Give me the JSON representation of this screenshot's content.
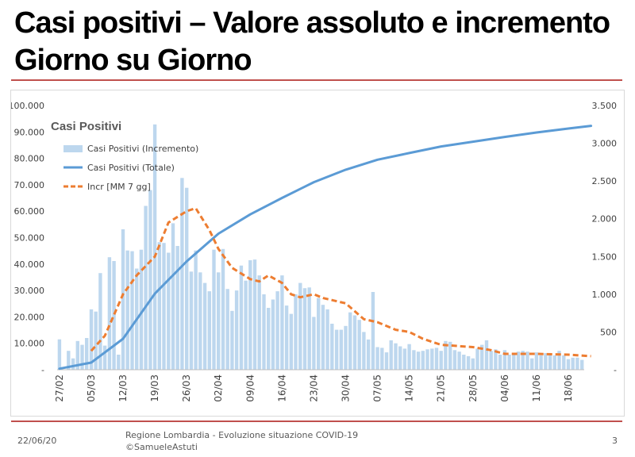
{
  "slide": {
    "title_line1": "Casi positivi – Valore assoluto e incremento",
    "title_line2": "Giorno su Giorno"
  },
  "footer": {
    "date": "22/06/20",
    "source_line1": "Regione Lombardia - Evoluzione situazione COVID-19",
    "source_line2": "©SamueleAstuti",
    "page": "3"
  },
  "colors": {
    "bars": "#bdd7ee",
    "total_line": "#5b9bd5",
    "moving_avg": "#ed7d31",
    "rule": "#c0504d"
  },
  "chart_data": {
    "type": "bar",
    "title": "Casi Positivi",
    "legend": [
      "Casi Positivi (Incremento)",
      "Casi Positivi (Totale)",
      "Incr [MM 7 gg]"
    ],
    "legend_position": "top-left",
    "y_left_ticks": [
      "-",
      "10.000",
      "20.000",
      "30.000",
      "40.000",
      "50.000",
      "60.000",
      "70.000",
      "80.000",
      "90.000",
      "100.000"
    ],
    "y_left_range": [
      0,
      100000
    ],
    "y_right_ticks": [
      "-",
      "500",
      "1.000",
      "1.500",
      "2.000",
      "2.500",
      "3.000",
      "3.500"
    ],
    "y_right_range": [
      0,
      3500
    ],
    "x_tick_labels": [
      "27/02",
      "05/03",
      "12/03",
      "19/03",
      "26/03",
      "02/04",
      "09/04",
      "16/04",
      "23/04",
      "30/04",
      "07/05",
      "14/05",
      "21/05",
      "28/05",
      "04/06",
      "11/06",
      "18/06"
    ],
    "start_date": "27/02",
    "grid": false,
    "series": [
      {
        "name": "Casi Positivi (Incremento)",
        "axis": "right",
        "values": [
          403,
          0,
          250,
          150,
          380,
          330,
          420,
          800,
          770,
          1280,
          320,
          1490,
          1440,
          200,
          1860,
          1580,
          1570,
          1340,
          1590,
          2170,
          2380,
          3250,
          1690,
          1680,
          1550,
          1940,
          1640,
          2540,
          2410,
          1300,
          1580,
          1290,
          1150,
          1040,
          1590,
          1290,
          1600,
          1070,
          780,
          1050,
          1380,
          1180,
          1450,
          1460,
          1250,
          1000,
          820,
          930,
          1040,
          1250,
          850,
          740,
          1000,
          1150,
          1080,
          1090,
          700,
          950,
          860,
          800,
          610,
          530,
          530,
          580,
          760,
          720,
          660,
          500,
          400,
          1030,
          300,
          290,
          230,
          390,
          350,
          310,
          280,
          340,
          260,
          240,
          250,
          270,
          280,
          290,
          250,
          380,
          370,
          260,
          240,
          200,
          180,
          150,
          280,
          330,
          390,
          250,
          270,
          200,
          260,
          200,
          210,
          240,
          250,
          240,
          150,
          230,
          190,
          220,
          210,
          190,
          250,
          190,
          140,
          160,
          160,
          130
        ]
      },
      {
        "name": "Casi Positivi (Totale)",
        "axis": "left",
        "points": [
          [
            0,
            400
          ],
          [
            7,
            2700
          ],
          [
            14,
            11700
          ],
          [
            21,
            28800
          ],
          [
            28,
            41000
          ],
          [
            35,
            51500
          ],
          [
            42,
            58800
          ],
          [
            49,
            65000
          ],
          [
            56,
            71000
          ],
          [
            63,
            75700
          ],
          [
            70,
            79500
          ],
          [
            77,
            82000
          ],
          [
            84,
            84500
          ],
          [
            91,
            86300
          ],
          [
            98,
            88100
          ],
          [
            105,
            89800
          ],
          [
            112,
            91300
          ],
          [
            117,
            92300
          ]
        ]
      },
      {
        "name": "Incr [MM 7 gg]",
        "axis": "right",
        "points": [
          [
            7,
            250
          ],
          [
            10,
            450
          ],
          [
            14,
            1000
          ],
          [
            17,
            1250
          ],
          [
            21,
            1500
          ],
          [
            24,
            1950
          ],
          [
            28,
            2100
          ],
          [
            30,
            2140
          ],
          [
            33,
            1850
          ],
          [
            35,
            1600
          ],
          [
            38,
            1350
          ],
          [
            42,
            1200
          ],
          [
            44,
            1170
          ],
          [
            46,
            1250
          ],
          [
            49,
            1150
          ],
          [
            51,
            1000
          ],
          [
            53,
            960
          ],
          [
            56,
            1000
          ],
          [
            58,
            950
          ],
          [
            63,
            880
          ],
          [
            67,
            670
          ],
          [
            70,
            630
          ],
          [
            74,
            530
          ],
          [
            77,
            500
          ],
          [
            80,
            410
          ],
          [
            84,
            330
          ],
          [
            91,
            300
          ],
          [
            95,
            260
          ],
          [
            98,
            210
          ],
          [
            105,
            210
          ],
          [
            112,
            200
          ],
          [
            117,
            180
          ]
        ]
      }
    ]
  }
}
